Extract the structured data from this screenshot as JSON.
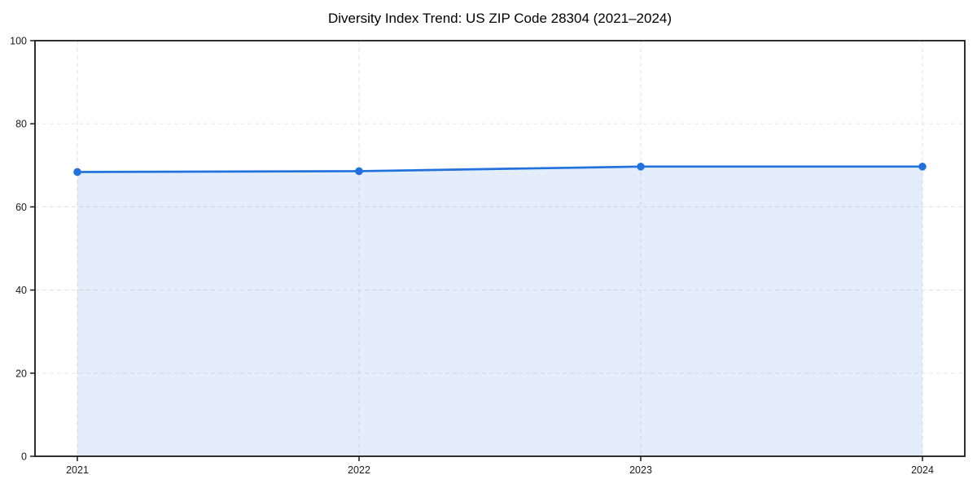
{
  "chart_data": {
    "type": "area",
    "title": "Diversity Index Trend: US ZIP Code 28304 (2021–2024)",
    "categories": [
      "2021",
      "2022",
      "2023",
      "2024"
    ],
    "series": [
      {
        "name": "Diversity Index",
        "values": [
          68.4,
          68.6,
          69.7,
          69.7
        ]
      }
    ],
    "xlabel": "",
    "ylabel": "",
    "ylim": [
      0,
      100
    ],
    "yticks": [
      0,
      20,
      40,
      60,
      80,
      100
    ],
    "grid": "dashed",
    "legend": "none",
    "marker": "circle",
    "colors": {
      "line": "#2272dd",
      "marker": "#2272dd",
      "fill": "rgba(34,114,221,0.12)",
      "grid": "#e7e7e7",
      "spine": "#1a1a1a",
      "tick_label": "#1a1a1a",
      "title": "#000000"
    }
  }
}
